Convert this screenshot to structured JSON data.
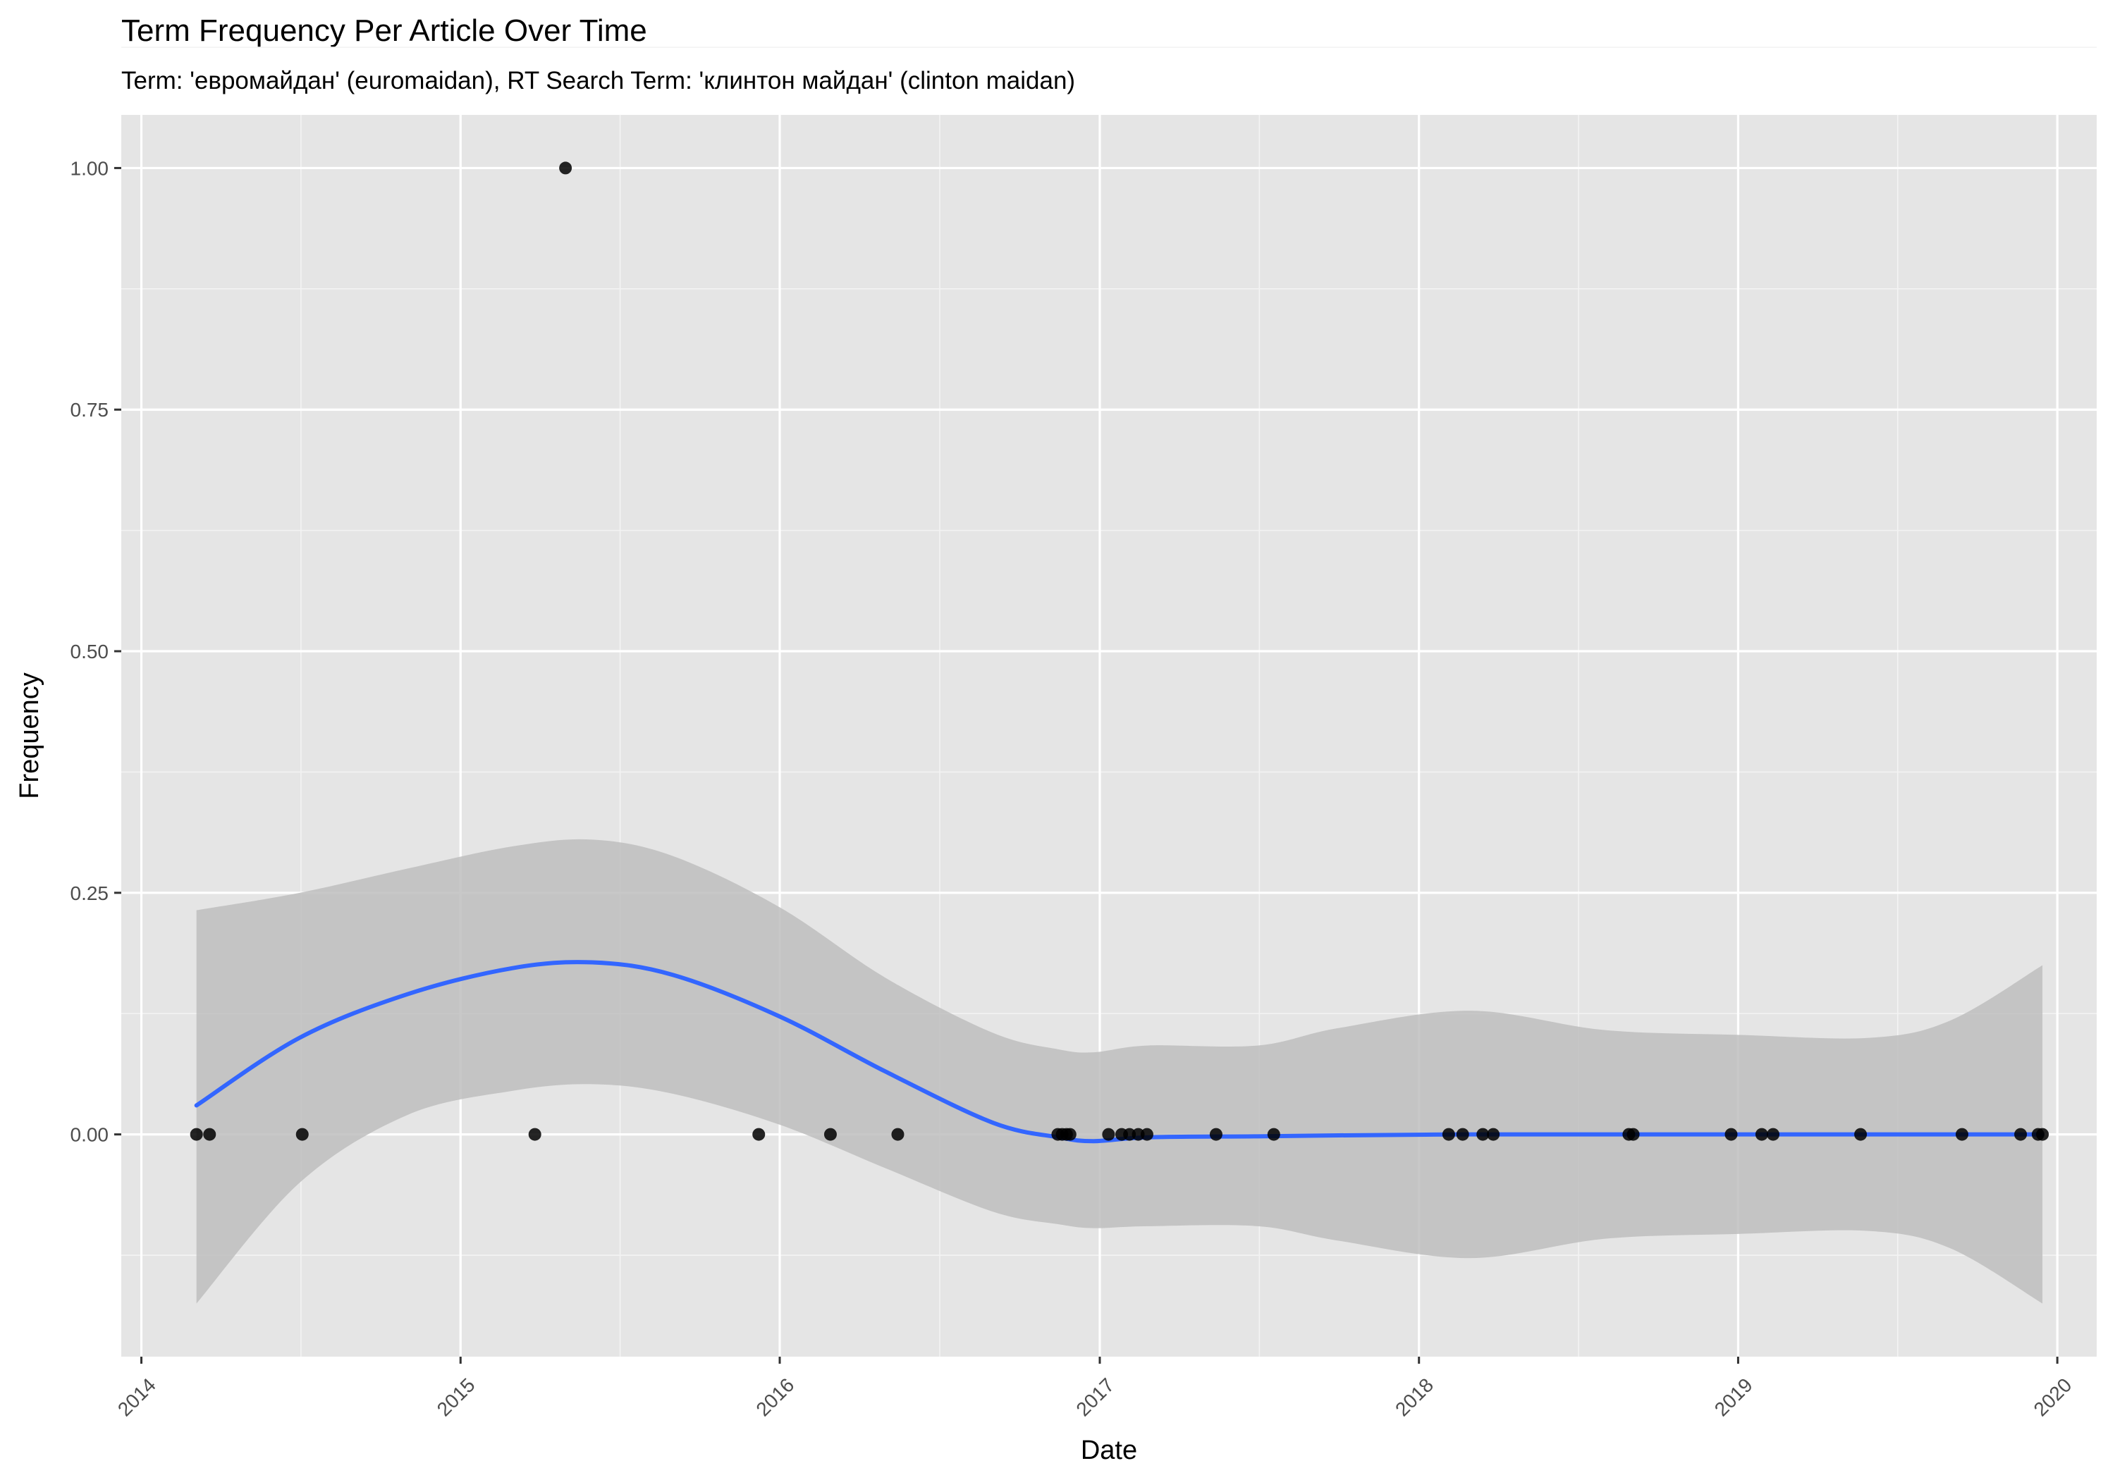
{
  "chart_data": {
    "type": "scatter",
    "title": "Term Frequency Per Article Over Time",
    "subtitle": "Term: 'евромайдан' (euromaidan), RT Search Term: 'клинтон майдан' (clinton maidan)",
    "xlabel": "Date",
    "ylabel": "Frequency",
    "x_ticks": [
      "2014",
      "2015",
      "2016",
      "2017",
      "2018",
      "2019",
      "2020"
    ],
    "y_ticks": [
      "0.00",
      "0.25",
      "0.50",
      "0.75",
      "1.00"
    ],
    "xlim": [
      "2013-12-09",
      "2020-02-15"
    ],
    "ylim": [
      -0.23,
      1.055
    ],
    "grid": true,
    "panel_color": "#e5e5e5",
    "point_color": "#000000",
    "smooth_color": "#3366ff",
    "ribbon_color": "#bebebe",
    "points": [
      {
        "x": "2014-03-05",
        "y": 0
      },
      {
        "x": "2014-03-20",
        "y": 0
      },
      {
        "x": "2014-07-04",
        "y": 0
      },
      {
        "x": "2015-03-27",
        "y": 0
      },
      {
        "x": "2015-05-01",
        "y": 1
      },
      {
        "x": "2015-12-08",
        "y": 0
      },
      {
        "x": "2016-02-28",
        "y": 0
      },
      {
        "x": "2016-05-15",
        "y": 0
      },
      {
        "x": "2016-11-14",
        "y": 0
      },
      {
        "x": "2016-11-19",
        "y": 0
      },
      {
        "x": "2016-11-24",
        "y": 0
      },
      {
        "x": "2016-11-28",
        "y": 0
      },
      {
        "x": "2017-01-11",
        "y": 0
      },
      {
        "x": "2017-01-26",
        "y": 0
      },
      {
        "x": "2017-02-04",
        "y": 0
      },
      {
        "x": "2017-02-14",
        "y": 0
      },
      {
        "x": "2017-02-24",
        "y": 0
      },
      {
        "x": "2017-05-14",
        "y": 0
      },
      {
        "x": "2017-07-19",
        "y": 0
      },
      {
        "x": "2018-02-04",
        "y": 0
      },
      {
        "x": "2018-02-20",
        "y": 0
      },
      {
        "x": "2018-03-15",
        "y": 0
      },
      {
        "x": "2018-03-27",
        "y": 0
      },
      {
        "x": "2018-08-29",
        "y": 0
      },
      {
        "x": "2018-09-03",
        "y": 0
      },
      {
        "x": "2018-12-24",
        "y": 0
      },
      {
        "x": "2019-01-28",
        "y": 0
      },
      {
        "x": "2019-02-10",
        "y": 0
      },
      {
        "x": "2019-05-21",
        "y": 0
      },
      {
        "x": "2019-09-14",
        "y": 0
      },
      {
        "x": "2019-11-20",
        "y": 0
      },
      {
        "x": "2019-12-10",
        "y": 0
      },
      {
        "x": "2019-12-15",
        "y": 0
      }
    ],
    "smooth": [
      {
        "x": "2014-03-05",
        "y": 0.03,
        "ymin": -0.175,
        "ymax": 0.232
      },
      {
        "x": "2014-07-01",
        "y": 0.1,
        "ymin": -0.05,
        "ymax": 0.25
      },
      {
        "x": "2014-11-01",
        "y": 0.145,
        "ymin": 0.02,
        "ymax": 0.275
      },
      {
        "x": "2015-03-01",
        "y": 0.172,
        "ymin": 0.045,
        "ymax": 0.298
      },
      {
        "x": "2015-06-01",
        "y": 0.178,
        "ymin": 0.052,
        "ymax": 0.305
      },
      {
        "x": "2015-09-01",
        "y": 0.165,
        "ymin": 0.042,
        "ymax": 0.288
      },
      {
        "x": "2016-01-01",
        "y": 0.122,
        "ymin": 0.01,
        "ymax": 0.235
      },
      {
        "x": "2016-05-01",
        "y": 0.065,
        "ymin": -0.035,
        "ymax": 0.162
      },
      {
        "x": "2016-09-01",
        "y": 0.012,
        "ymin": -0.08,
        "ymax": 0.105
      },
      {
        "x": "2016-11-15",
        "y": -0.003,
        "ymin": -0.093,
        "ymax": 0.088
      },
      {
        "x": "2016-12-25",
        "y": -0.007,
        "ymin": -0.097,
        "ymax": 0.085
      },
      {
        "x": "2017-02-25",
        "y": -0.003,
        "ymin": -0.095,
        "ymax": 0.092
      },
      {
        "x": "2017-07-01",
        "y": -0.002,
        "ymin": -0.095,
        "ymax": 0.092
      },
      {
        "x": "2017-10-01",
        "y": -0.001,
        "ymin": -0.11,
        "ymax": 0.11
      },
      {
        "x": "2018-03-01",
        "y": 0.0,
        "ymin": -0.128,
        "ymax": 0.128
      },
      {
        "x": "2018-08-01",
        "y": 0.0,
        "ymin": -0.108,
        "ymax": 0.108
      },
      {
        "x": "2019-01-01",
        "y": 0.0,
        "ymin": -0.103,
        "ymax": 0.103
      },
      {
        "x": "2019-06-01",
        "y": 0.0,
        "ymin": -0.1,
        "ymax": 0.1
      },
      {
        "x": "2019-09-01",
        "y": 0.0,
        "ymin": -0.118,
        "ymax": 0.118
      },
      {
        "x": "2019-12-15",
        "y": 0.0,
        "ymin": -0.175,
        "ymax": 0.175
      }
    ]
  }
}
